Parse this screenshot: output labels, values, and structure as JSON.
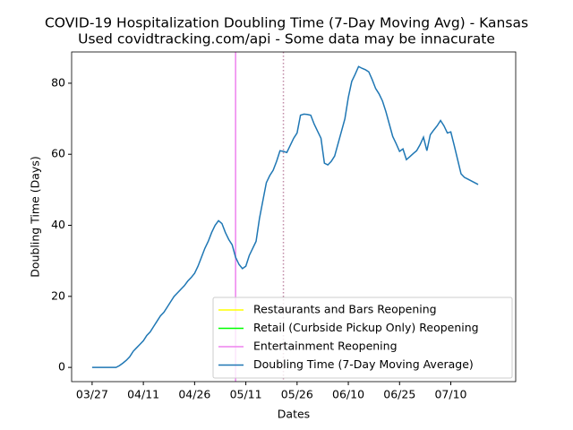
{
  "chart_data": {
    "type": "line",
    "title": "COVID-19 Hospitalization Doubling Time (7-Day Moving Avg) - Kansas",
    "subtitle": "Used covidtracking.com/api - Some data may be innacurate",
    "x_label": "Dates",
    "y_label": "Doubling Time (Days)",
    "x": [
      0,
      1,
      2,
      3,
      4,
      5,
      6,
      7,
      8,
      9,
      10,
      11,
      12,
      13,
      14,
      15,
      16,
      17,
      18,
      19,
      20,
      21,
      22,
      23,
      24,
      25,
      26,
      27,
      28,
      29,
      30,
      31,
      32,
      33,
      34,
      35,
      36,
      37,
      38,
      39,
      40,
      41,
      42,
      43,
      44,
      45,
      46,
      47,
      48,
      49,
      50,
      51,
      52,
      53,
      54,
      55,
      56,
      57,
      58,
      59,
      60,
      61,
      62,
      63,
      64,
      65,
      66,
      67,
      68,
      69,
      70,
      71,
      72,
      73,
      74,
      75,
      76,
      77,
      78,
      79,
      80,
      81,
      82,
      83,
      84,
      85,
      86,
      87,
      88,
      89,
      90,
      91,
      92,
      93,
      94,
      95,
      96,
      97,
      98,
      99,
      100,
      101,
      102,
      103,
      104,
      105,
      106,
      107,
      108,
      109,
      110,
      111,
      112,
      113
    ],
    "series": [
      {
        "name": "Doubling Time (7-Day Moving Average)",
        "color": "#1f77b4",
        "values": [
          0,
          0,
          0,
          0,
          0,
          0,
          0,
          0,
          0.5,
          1.2,
          2,
          3,
          4.5,
          5.5,
          6.5,
          7.5,
          9,
          10,
          11.5,
          13,
          14.5,
          15.5,
          17,
          18.5,
          20,
          21,
          22,
          23,
          24.3,
          25.3,
          26.5,
          28.5,
          31,
          33.5,
          35.5,
          38,
          40,
          41.3,
          40.5,
          38,
          36,
          34.5,
          31,
          29,
          27.8,
          28.5,
          31.5,
          33.5,
          35.5,
          42,
          47,
          52,
          54,
          55.5,
          58,
          61,
          60.8,
          60.5,
          62.5,
          64.5,
          66,
          71,
          71.3,
          71.2,
          71,
          68.5,
          66.5,
          64.5,
          57.5,
          57,
          58,
          59.5,
          63,
          66.5,
          70,
          76,
          80.5,
          82.5,
          84.7,
          84.2,
          83.8,
          83.2,
          81,
          78.5,
          77,
          75,
          72,
          68.5,
          65,
          63,
          60.8,
          61.5,
          58.5,
          59.3,
          60.2,
          61,
          62.7,
          64.8,
          61,
          65.5,
          66.8,
          68,
          69.5,
          68,
          66,
          66.3,
          62.5,
          58.5,
          54.5,
          53.5,
          53,
          52.5,
          52,
          51.5
        ]
      }
    ],
    "events": [
      {
        "name": "Restaurants and Bars Reopening",
        "color": "#ffff00",
        "x": null
      },
      {
        "name": "Retail (Curbside Pickup Only) Reopening",
        "color": "#00ff00",
        "x": null
      },
      {
        "name": "Entertainment Reopening",
        "color": "#ee82ee",
        "x": 42
      }
    ],
    "reference_line": {
      "x": 56,
      "color": "#c08aa6",
      "style": "dotted"
    },
    "xlim": [
      -6,
      124
    ],
    "xticks": [
      {
        "value": 0,
        "label": "03/27"
      },
      {
        "value": 15,
        "label": "04/11"
      },
      {
        "value": 30,
        "label": "04/26"
      },
      {
        "value": 45,
        "label": "05/11"
      },
      {
        "value": 60,
        "label": "05/26"
      },
      {
        "value": 75,
        "label": "06/10"
      },
      {
        "value": 90,
        "label": "06/25"
      },
      {
        "value": 105,
        "label": "07/10"
      }
    ],
    "ylim": [
      -4,
      88.8
    ],
    "yticks": [
      0,
      20,
      40,
      60,
      80
    ],
    "legend": "lower right"
  }
}
